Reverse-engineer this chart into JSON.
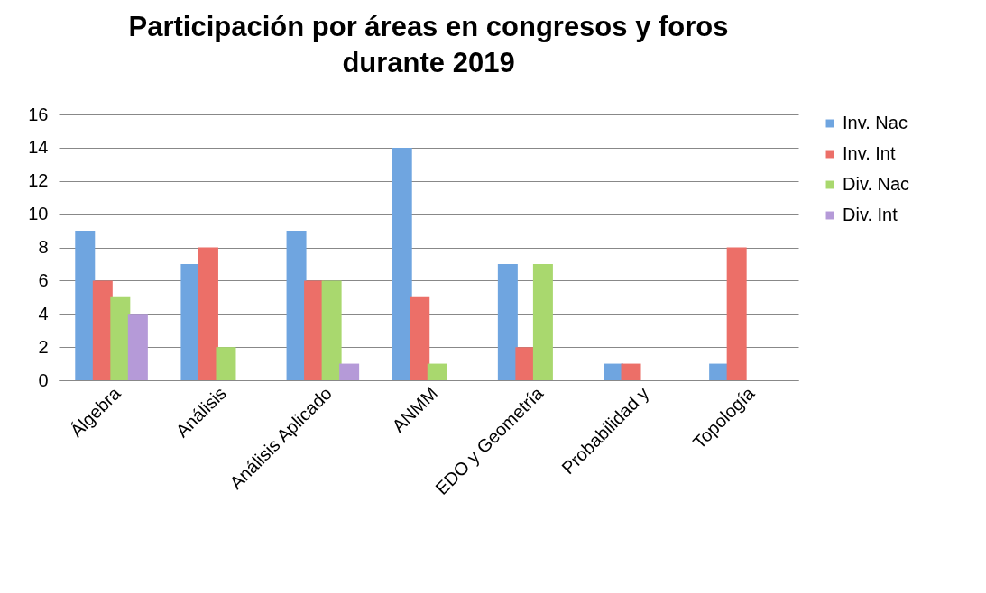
{
  "chart_data": {
    "type": "bar",
    "title": "Participación por áreas en congresos y foros durante 2019",
    "categories": [
      "Álgebra",
      "Análisis",
      "Análisis Aplicado",
      "ANMM",
      "EDO y Geometría",
      "Probabilidad y",
      "Topología"
    ],
    "series": [
      {
        "name": "Inv. Nac",
        "color": "#6fa5e0",
        "values": [
          9,
          7,
          9,
          14,
          7,
          1,
          1
        ]
      },
      {
        "name": "Inv. Int",
        "color": "#ec6f68",
        "values": [
          6,
          8,
          6,
          5,
          2,
          1,
          8
        ]
      },
      {
        "name": "Div. Nac",
        "color": "#a9d86e",
        "values": [
          5,
          2,
          6,
          1,
          7,
          0,
          0
        ]
      },
      {
        "name": "Div. Int",
        "color": "#b59ad8",
        "values": [
          4,
          0,
          1,
          0,
          0,
          0,
          0
        ]
      }
    ],
    "ylim": [
      0,
      16
    ],
    "yticks": [
      0,
      2,
      4,
      6,
      8,
      10,
      12,
      14,
      16
    ],
    "grid": "y",
    "legend": "right"
  }
}
